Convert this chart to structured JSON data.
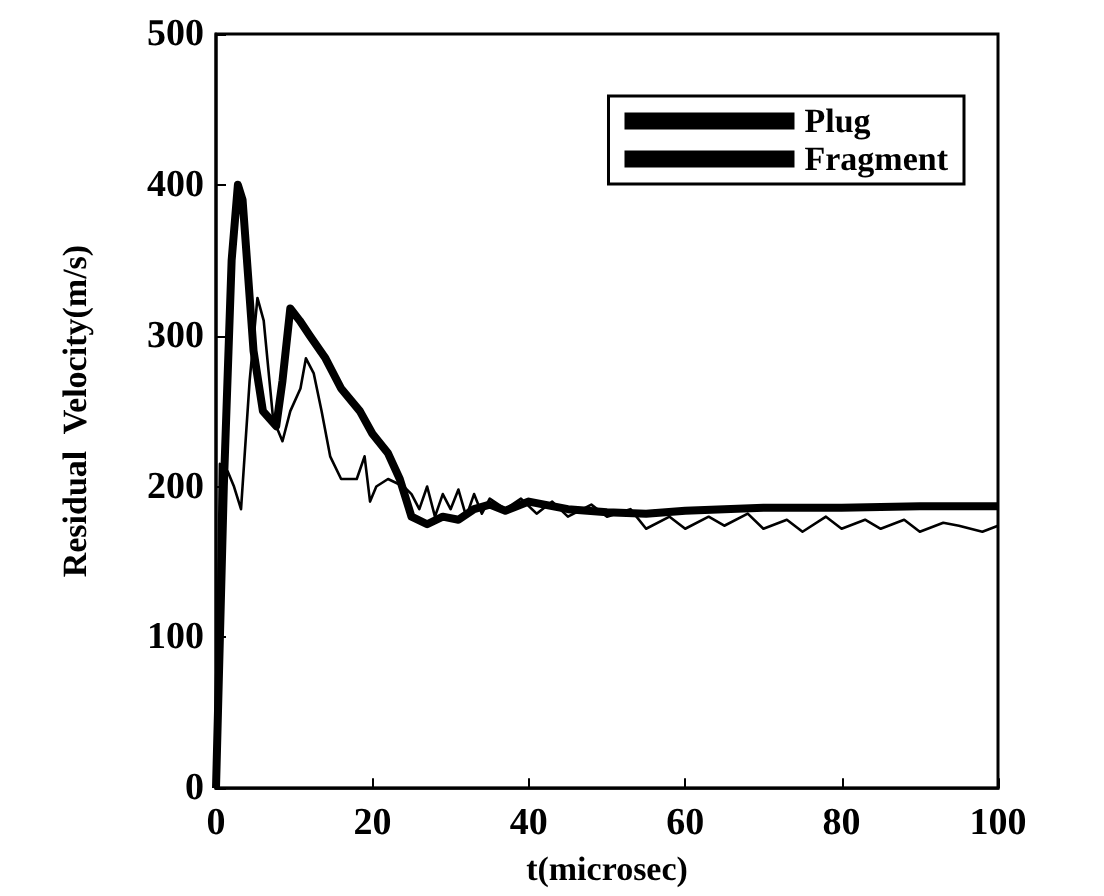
{
  "chart_data": {
    "type": "line",
    "xlabel": "t(microsec)",
    "ylabel": "Residual  Velocity(m/s)",
    "xlim": [
      0,
      100
    ],
    "xticks": [
      0,
      20,
      40,
      60,
      80,
      100
    ],
    "ylim": [
      0,
      500
    ],
    "yticks": [
      0,
      100,
      200,
      300,
      400,
      500
    ],
    "grid": false,
    "legend": "top right",
    "marker": "none",
    "line_style": "solid",
    "series": [
      {
        "name": "Plug",
        "color": "#000000",
        "x": [
          0,
          1,
          2,
          2.8,
          3.4,
          4.8,
          6,
          7.7,
          8.5,
          9.5,
          10.7,
          12,
          14,
          16,
          18.4,
          20,
          22,
          23.5,
          25,
          27,
          29,
          31,
          33,
          35,
          37,
          40,
          45,
          50,
          55,
          60,
          70,
          80,
          90,
          100
        ],
        "values": [
          0,
          200,
          350,
          400,
          390,
          290,
          250,
          240,
          270,
          318,
          310,
          300,
          285,
          265,
          250,
          235,
          222,
          205,
          180,
          175,
          180,
          178,
          185,
          188,
          184,
          190,
          185,
          183,
          182,
          184,
          186,
          186,
          187,
          187
        ]
      },
      {
        "name": "Fragment",
        "color": "#000000",
        "x": [
          0,
          0.5,
          1.5,
          2.3,
          3.2,
          4.3,
          5.3,
          6.1,
          7.3,
          8.5,
          9.5,
          10.8,
          11.5,
          12.5,
          13.5,
          14.6,
          16,
          18,
          19,
          19.7,
          20.5,
          22,
          24,
          25,
          26,
          27,
          28,
          29,
          30,
          31,
          32,
          33,
          34,
          35,
          37,
          39,
          41,
          43,
          45,
          48,
          50,
          53,
          55,
          58,
          60,
          63,
          65,
          68,
          70,
          73,
          75,
          78,
          80,
          83,
          85,
          88,
          90,
          93,
          95,
          98,
          100
        ],
        "values": [
          0,
          215,
          210,
          200,
          185,
          270,
          325,
          310,
          245,
          230,
          250,
          265,
          285,
          275,
          250,
          220,
          205,
          205,
          220,
          190,
          200,
          205,
          200,
          195,
          185,
          200,
          180,
          195,
          185,
          198,
          180,
          195,
          182,
          192,
          185,
          192,
          182,
          190,
          180,
          188,
          180,
          185,
          172,
          180,
          172,
          180,
          174,
          182,
          172,
          178,
          170,
          180,
          172,
          178,
          172,
          178,
          170,
          176,
          174,
          170,
          174
        ]
      }
    ]
  }
}
